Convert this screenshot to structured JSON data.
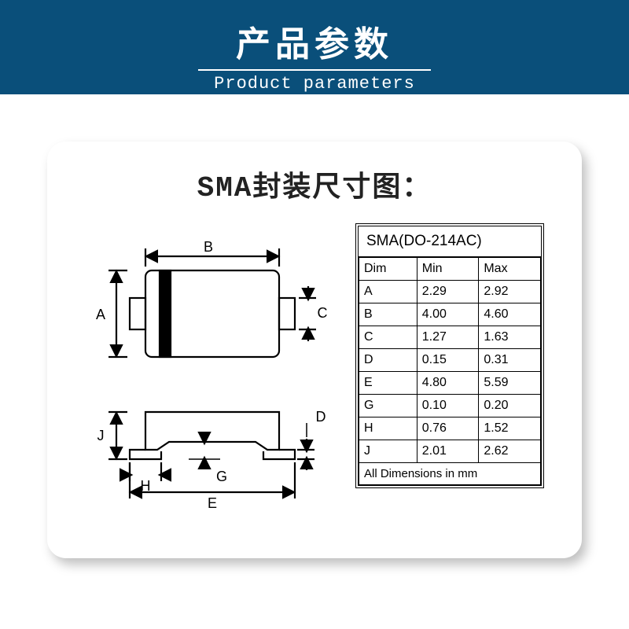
{
  "header": {
    "title_cn": "产品参数",
    "title_en": "Product parameters",
    "bg_color": "#0a4f7a",
    "text_color": "#ffffff"
  },
  "card": {
    "title": "SMA封装尺寸图：",
    "bg_color": "#ffffff",
    "shadow_color": "rgba(0,0,0,0.25)",
    "border_radius": 24
  },
  "diagram": {
    "labels": {
      "A": "A",
      "B": "B",
      "C": "C",
      "D": "D",
      "E": "E",
      "G": "G",
      "H": "H",
      "J": "J"
    },
    "stroke_color": "#000000",
    "stroke_width": 2,
    "font_family": "Arial",
    "font_size": 18
  },
  "table": {
    "title": "SMA(DO-214AC)",
    "columns": [
      "Dim",
      "Min",
      "Max"
    ],
    "rows": [
      [
        "A",
        "2.29",
        "2.92"
      ],
      [
        "B",
        "4.00",
        "4.60"
      ],
      [
        "C",
        "1.27",
        "1.63"
      ],
      [
        "D",
        "0.15",
        "0.31"
      ],
      [
        "E",
        "4.80",
        "5.59"
      ],
      [
        "G",
        "0.10",
        "0.20"
      ],
      [
        "H",
        "0.76",
        "1.52"
      ],
      [
        "J",
        "2.01",
        "2.62"
      ]
    ],
    "footer": "All Dimensions in mm",
    "border_color": "#000000",
    "text_color": "#000000",
    "font_size": 16
  }
}
